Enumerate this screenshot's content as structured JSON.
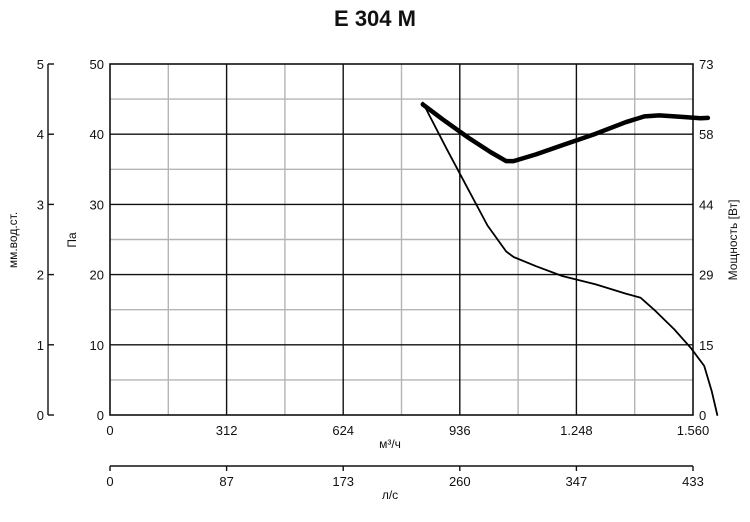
{
  "chart_data": {
    "type": "line",
    "title": "E 304 M",
    "x_axis_primary": {
      "label": "м³/ч",
      "range": [
        0,
        1560
      ],
      "ticks": [
        "0",
        "312",
        "624",
        "936",
        "1.248",
        "1.560"
      ]
    },
    "x_axis_secondary": {
      "label": "л/с",
      "range": [
        0,
        433
      ],
      "ticks": [
        "0",
        "87",
        "173",
        "260",
        "347",
        "433"
      ]
    },
    "y_axis_left_outer": {
      "label": "мм.вод.ст.",
      "range": [
        0,
        5
      ],
      "ticks": [
        "0",
        "1",
        "2",
        "3",
        "4",
        "5"
      ]
    },
    "y_axis_left_inner": {
      "label": "Па",
      "range": [
        0,
        50
      ],
      "ticks": [
        "0",
        "10",
        "20",
        "30",
        "40",
        "50"
      ]
    },
    "y_axis_right": {
      "label": "Мощность [Вт]",
      "range": [
        0,
        73
      ],
      "ticks": [
        "0",
        "15",
        "29",
        "44",
        "58",
        "73"
      ]
    },
    "grid": true,
    "series": [
      {
        "axis": "pressure",
        "units": "Па",
        "stroke_width": 1.8,
        "color": "#000000",
        "points": [
          [
            837,
            44.5
          ],
          [
            900,
            38
          ],
          [
            960,
            32
          ],
          [
            1010,
            27
          ],
          [
            1060,
            23.3
          ],
          [
            1080,
            22.5
          ],
          [
            1140,
            21.2
          ],
          [
            1210,
            19.8
          ],
          [
            1300,
            18.6
          ],
          [
            1380,
            17.3
          ],
          [
            1420,
            16.7
          ],
          [
            1460,
            14.8
          ],
          [
            1510,
            12.2
          ],
          [
            1555,
            9.5
          ],
          [
            1590,
            7
          ],
          [
            1610,
            3.4
          ],
          [
            1625,
            0
          ]
        ]
      },
      {
        "axis": "power",
        "units": "Вт",
        "stroke_width": 4.5,
        "color": "#000000",
        "points": [
          [
            837,
            64.6
          ],
          [
            890,
            61.5
          ],
          [
            960,
            57.6
          ],
          [
            1020,
            54.6
          ],
          [
            1060,
            52.8
          ],
          [
            1080,
            52.8
          ],
          [
            1140,
            54.2
          ],
          [
            1210,
            56.1
          ],
          [
            1300,
            58.5
          ],
          [
            1380,
            60.9
          ],
          [
            1430,
            62.1
          ],
          [
            1470,
            62.3
          ],
          [
            1530,
            62
          ],
          [
            1580,
            61.7
          ],
          [
            1600,
            61.8
          ]
        ]
      }
    ]
  }
}
